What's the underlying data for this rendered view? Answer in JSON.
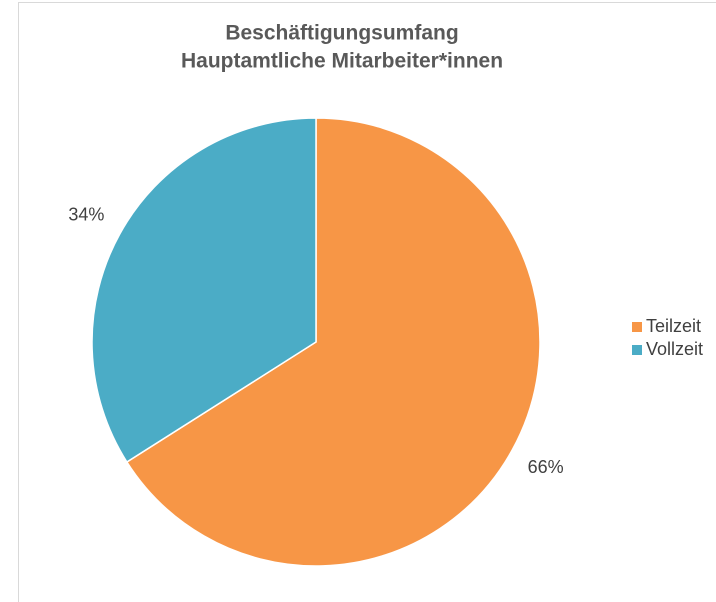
{
  "chart_data": {
    "type": "pie",
    "title": "Beschäftigungsumfang",
    "subtitle": "Hauptamtliche Mitarbeiter*innen",
    "categories": [
      "Teilzeit",
      "Vollzeit"
    ],
    "values": [
      66,
      34
    ],
    "value_labels": [
      "66%",
      "34%"
    ],
    "colors": [
      "#f79646",
      "#4bacc6"
    ],
    "legend": "right"
  }
}
